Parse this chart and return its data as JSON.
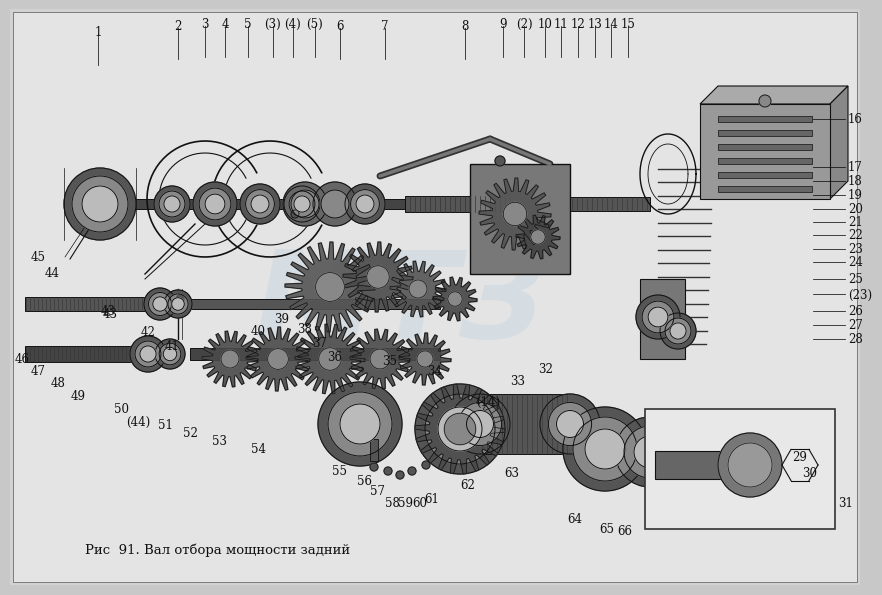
{
  "caption": "Рис  91. Вал отбора мощности задний",
  "bg_color": "#c8c8c8",
  "diagram_bg": "#e8e8e8",
  "line_color": "#111111",
  "label_color": "#111111",
  "label_fontsize": 8.5,
  "caption_fontsize": 9.5,
  "watermark_color": "#b8cfe0",
  "watermark_alpha": 0.3,
  "top_labels": [
    [
      "1",
      88,
      14
    ],
    [
      "2",
      168,
      8
    ],
    [
      "3",
      195,
      6
    ],
    [
      "4",
      215,
      6
    ],
    [
      "5",
      238,
      6
    ],
    [
      "(3)",
      263,
      6
    ],
    [
      "(4)",
      283,
      6
    ],
    [
      "(5)",
      305,
      6
    ],
    [
      "6",
      330,
      8
    ],
    [
      "7",
      375,
      8
    ],
    [
      "8",
      455,
      8
    ],
    [
      "9",
      493,
      6
    ],
    [
      "(2)",
      514,
      6
    ],
    [
      "10",
      535,
      6
    ],
    [
      "11",
      551,
      6
    ],
    [
      "12",
      568,
      6
    ],
    [
      "13",
      585,
      6
    ],
    [
      "14",
      601,
      6
    ],
    [
      "15",
      618,
      6
    ]
  ],
  "right_labels": [
    [
      "16",
      838,
      110
    ],
    [
      "17",
      838,
      158
    ],
    [
      "18",
      838,
      172
    ],
    [
      "19",
      838,
      186
    ],
    [
      "20",
      838,
      200
    ],
    [
      "21",
      838,
      213
    ],
    [
      "22",
      838,
      226
    ],
    [
      "23",
      838,
      240
    ],
    [
      "24",
      838,
      253
    ],
    [
      "25",
      838,
      270
    ],
    [
      "(23)",
      838,
      285
    ],
    [
      "26",
      838,
      302
    ],
    [
      "27",
      838,
      316
    ],
    [
      "28",
      838,
      330
    ]
  ],
  "other_labels": [
    [
      "45",
      28,
      248
    ],
    [
      "44",
      42,
      264
    ],
    [
      "43",
      98,
      302
    ],
    [
      "42",
      138,
      323
    ],
    [
      "41",
      162,
      337
    ],
    [
      "40",
      248,
      322
    ],
    [
      "39",
      272,
      310
    ],
    [
      "38",
      295,
      320
    ],
    [
      "37",
      310,
      334
    ],
    [
      "36",
      325,
      348
    ],
    [
      "35",
      380,
      352
    ],
    [
      "34",
      425,
      362
    ],
    [
      "33",
      508,
      372
    ],
    [
      "32",
      536,
      360
    ],
    [
      "(14)",
      478,
      392
    ],
    [
      "46",
      12,
      350
    ],
    [
      "47",
      28,
      362
    ],
    [
      "48",
      48,
      374
    ],
    [
      "49",
      68,
      387
    ],
    [
      "50",
      112,
      400
    ],
    [
      "(44)",
      128,
      412
    ],
    [
      "51",
      155,
      416
    ],
    [
      "52",
      180,
      424
    ],
    [
      "53",
      210,
      432
    ],
    [
      "54",
      248,
      440
    ],
    [
      "55",
      330,
      462
    ],
    [
      "56",
      355,
      472
    ],
    [
      "57",
      368,
      482
    ],
    [
      "58",
      382,
      494
    ],
    [
      "59",
      396,
      494
    ],
    [
      "60",
      410,
      494
    ],
    [
      "61",
      422,
      490
    ],
    [
      "62",
      458,
      476
    ],
    [
      "63",
      502,
      464
    ],
    [
      "64",
      565,
      510
    ],
    [
      "65",
      597,
      520
    ],
    [
      "66",
      615,
      522
    ],
    [
      "29",
      790,
      448
    ],
    [
      "30",
      800,
      464
    ],
    [
      "31",
      836,
      494
    ]
  ]
}
